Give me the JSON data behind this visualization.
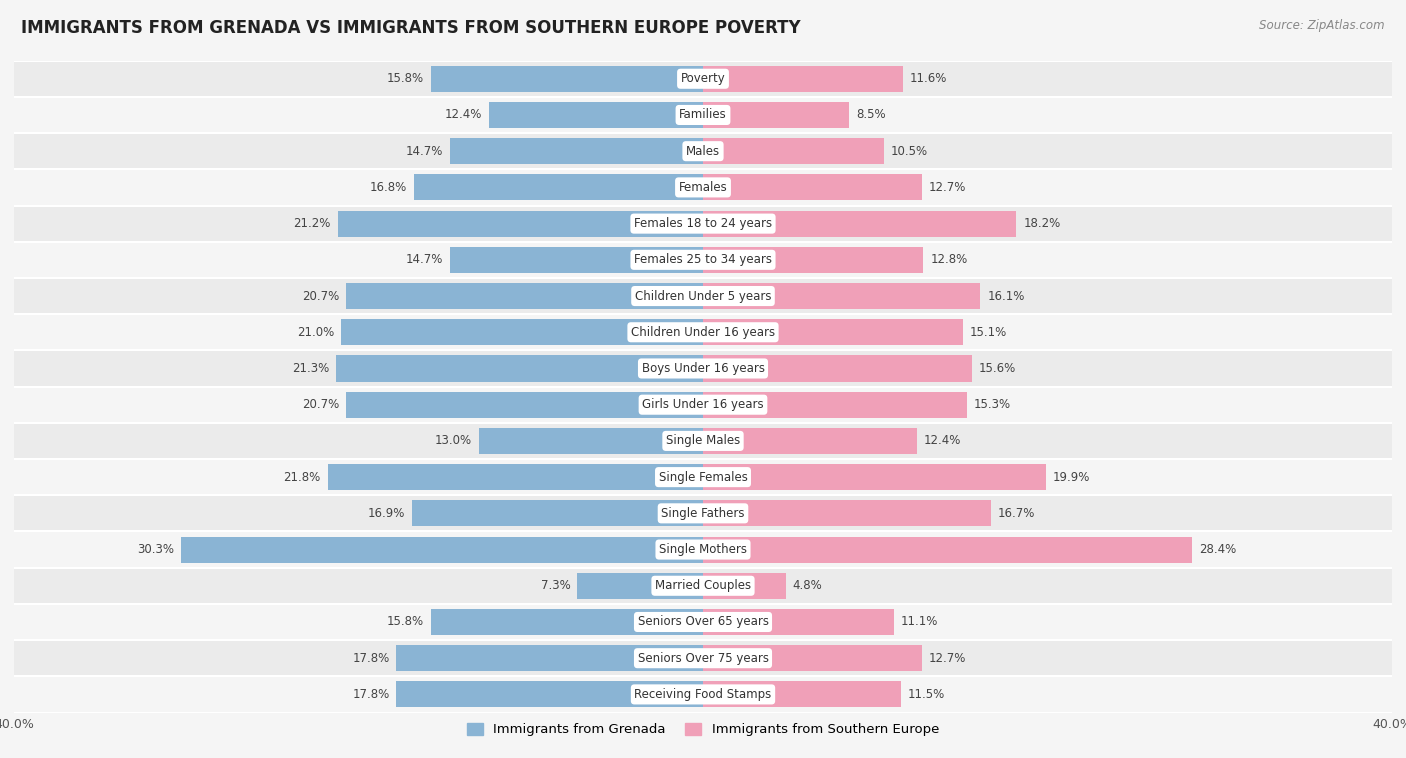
{
  "title": "IMMIGRANTS FROM GRENADA VS IMMIGRANTS FROM SOUTHERN EUROPE POVERTY",
  "source": "Source: ZipAtlas.com",
  "categories": [
    "Poverty",
    "Families",
    "Males",
    "Females",
    "Females 18 to 24 years",
    "Females 25 to 34 years",
    "Children Under 5 years",
    "Children Under 16 years",
    "Boys Under 16 years",
    "Girls Under 16 years",
    "Single Males",
    "Single Females",
    "Single Fathers",
    "Single Mothers",
    "Married Couples",
    "Seniors Over 65 years",
    "Seniors Over 75 years",
    "Receiving Food Stamps"
  ],
  "grenada_values": [
    15.8,
    12.4,
    14.7,
    16.8,
    21.2,
    14.7,
    20.7,
    21.0,
    21.3,
    20.7,
    13.0,
    21.8,
    16.9,
    30.3,
    7.3,
    15.8,
    17.8,
    17.8
  ],
  "southern_europe_values": [
    11.6,
    8.5,
    10.5,
    12.7,
    18.2,
    12.8,
    16.1,
    15.1,
    15.6,
    15.3,
    12.4,
    19.9,
    16.7,
    28.4,
    4.8,
    11.1,
    12.7,
    11.5
  ],
  "grenada_color": "#8ab4d4",
  "southern_europe_color": "#f0a0b8",
  "bar_height": 0.72,
  "xlim": 40.0,
  "legend_label_left": "Immigrants from Grenada",
  "legend_label_right": "Immigrants from Southern Europe",
  "background_color": "#f5f5f5",
  "row_even_color": "#ebebeb",
  "row_odd_color": "#f5f5f5",
  "title_fontsize": 12,
  "source_fontsize": 8.5,
  "cat_fontsize": 8.5,
  "value_fontsize": 8.5
}
